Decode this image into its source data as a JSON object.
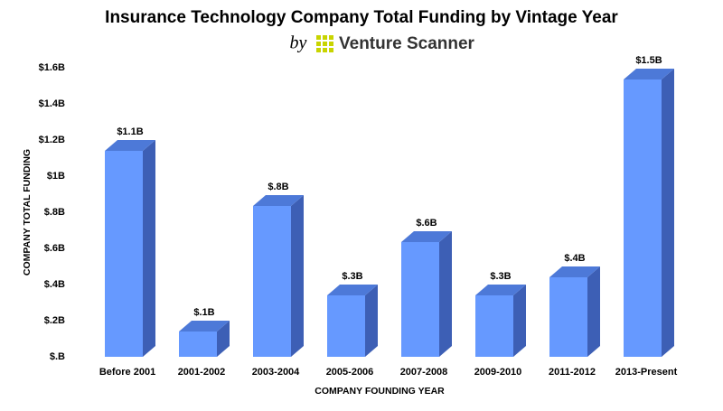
{
  "chart_data": {
    "type": "bar3d",
    "title": "Insurance Technology Company Total Funding by Vintage Year",
    "subtitle": "by",
    "brand": "Venture Scanner",
    "x_label": "COMPANY FOUNDING YEAR",
    "y_label": "COMPANY TOTAL FUNDING",
    "categories": [
      "Before 2001",
      "2001-2002",
      "2003-2004",
      "2005-2006",
      "2007-2008",
      "2009-2010",
      "2011-2012",
      "2013-Present"
    ],
    "values": [
      1.14,
      0.14,
      0.835,
      0.34,
      0.635,
      0.34,
      0.44,
      1.535
    ],
    "value_labels": [
      "$1.1B",
      "$.1B",
      "$.8B",
      "$.3B",
      "$.6B",
      "$.3B",
      "$.4B",
      "$1.5B"
    ],
    "color": "#6699ff",
    "ylim": [
      0,
      1.6
    ],
    "yticks": [
      {
        "value": 0,
        "label": "$.B"
      },
      {
        "value": 0.2,
        "label": "$.2B"
      },
      {
        "value": 0.4,
        "label": "$.4B"
      },
      {
        "value": 0.6,
        "label": "$.6B"
      },
      {
        "value": 0.8,
        "label": "$.8B"
      },
      {
        "value": 1,
        "label": "$1B"
      },
      {
        "value": 1.2,
        "label": "$1.2B"
      },
      {
        "value": 1.4,
        "label": "$1.4B"
      },
      {
        "value": 1.6,
        "label": "$1.6B"
      }
    ],
    "grid": false
  }
}
